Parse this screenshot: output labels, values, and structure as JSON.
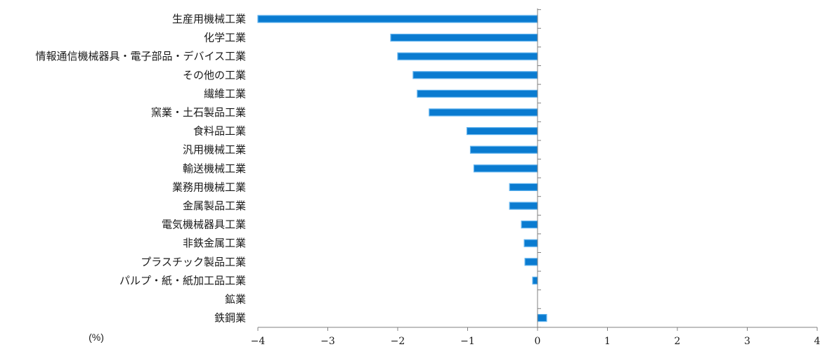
{
  "chart_data": {
    "type": "bar",
    "orientation": "horizontal",
    "categories": [
      "生産用機械工業",
      "化学工業",
      "情報通信機械器具・電子部品・デバイス工業",
      "その他の工業",
      "繊維工業",
      "窯業・土石製品工業",
      "食料品工業",
      "汎用機械工業",
      "輸送機械工業",
      "業務用機械工業",
      "金属製品工業",
      "電気機械器具工業",
      "非鉄金属工業",
      "プラスチック製品工業",
      "パルプ・紙・紙加工品工業",
      "鉱業",
      "鉄鋼業"
    ],
    "values": [
      -4.0,
      -2.1,
      -2.0,
      -1.78,
      -1.72,
      -1.55,
      -1.01,
      -0.96,
      -0.91,
      -0.4,
      -0.4,
      -0.23,
      -0.19,
      -0.18,
      -0.07,
      0.0,
      0.13
    ],
    "xlim": [
      -4,
      4
    ],
    "xticks": [
      -4,
      -3,
      -2,
      -1,
      0,
      1,
      2,
      3,
      4
    ],
    "xtick_labels": [
      "−4",
      "−3",
      "−2",
      "−1",
      "0",
      "1",
      "2",
      "3",
      "4"
    ],
    "unit_label": "(%)",
    "grid": false,
    "bar_color": "#0a7bd0",
    "bar_edge_color": "#5fb2ee"
  }
}
